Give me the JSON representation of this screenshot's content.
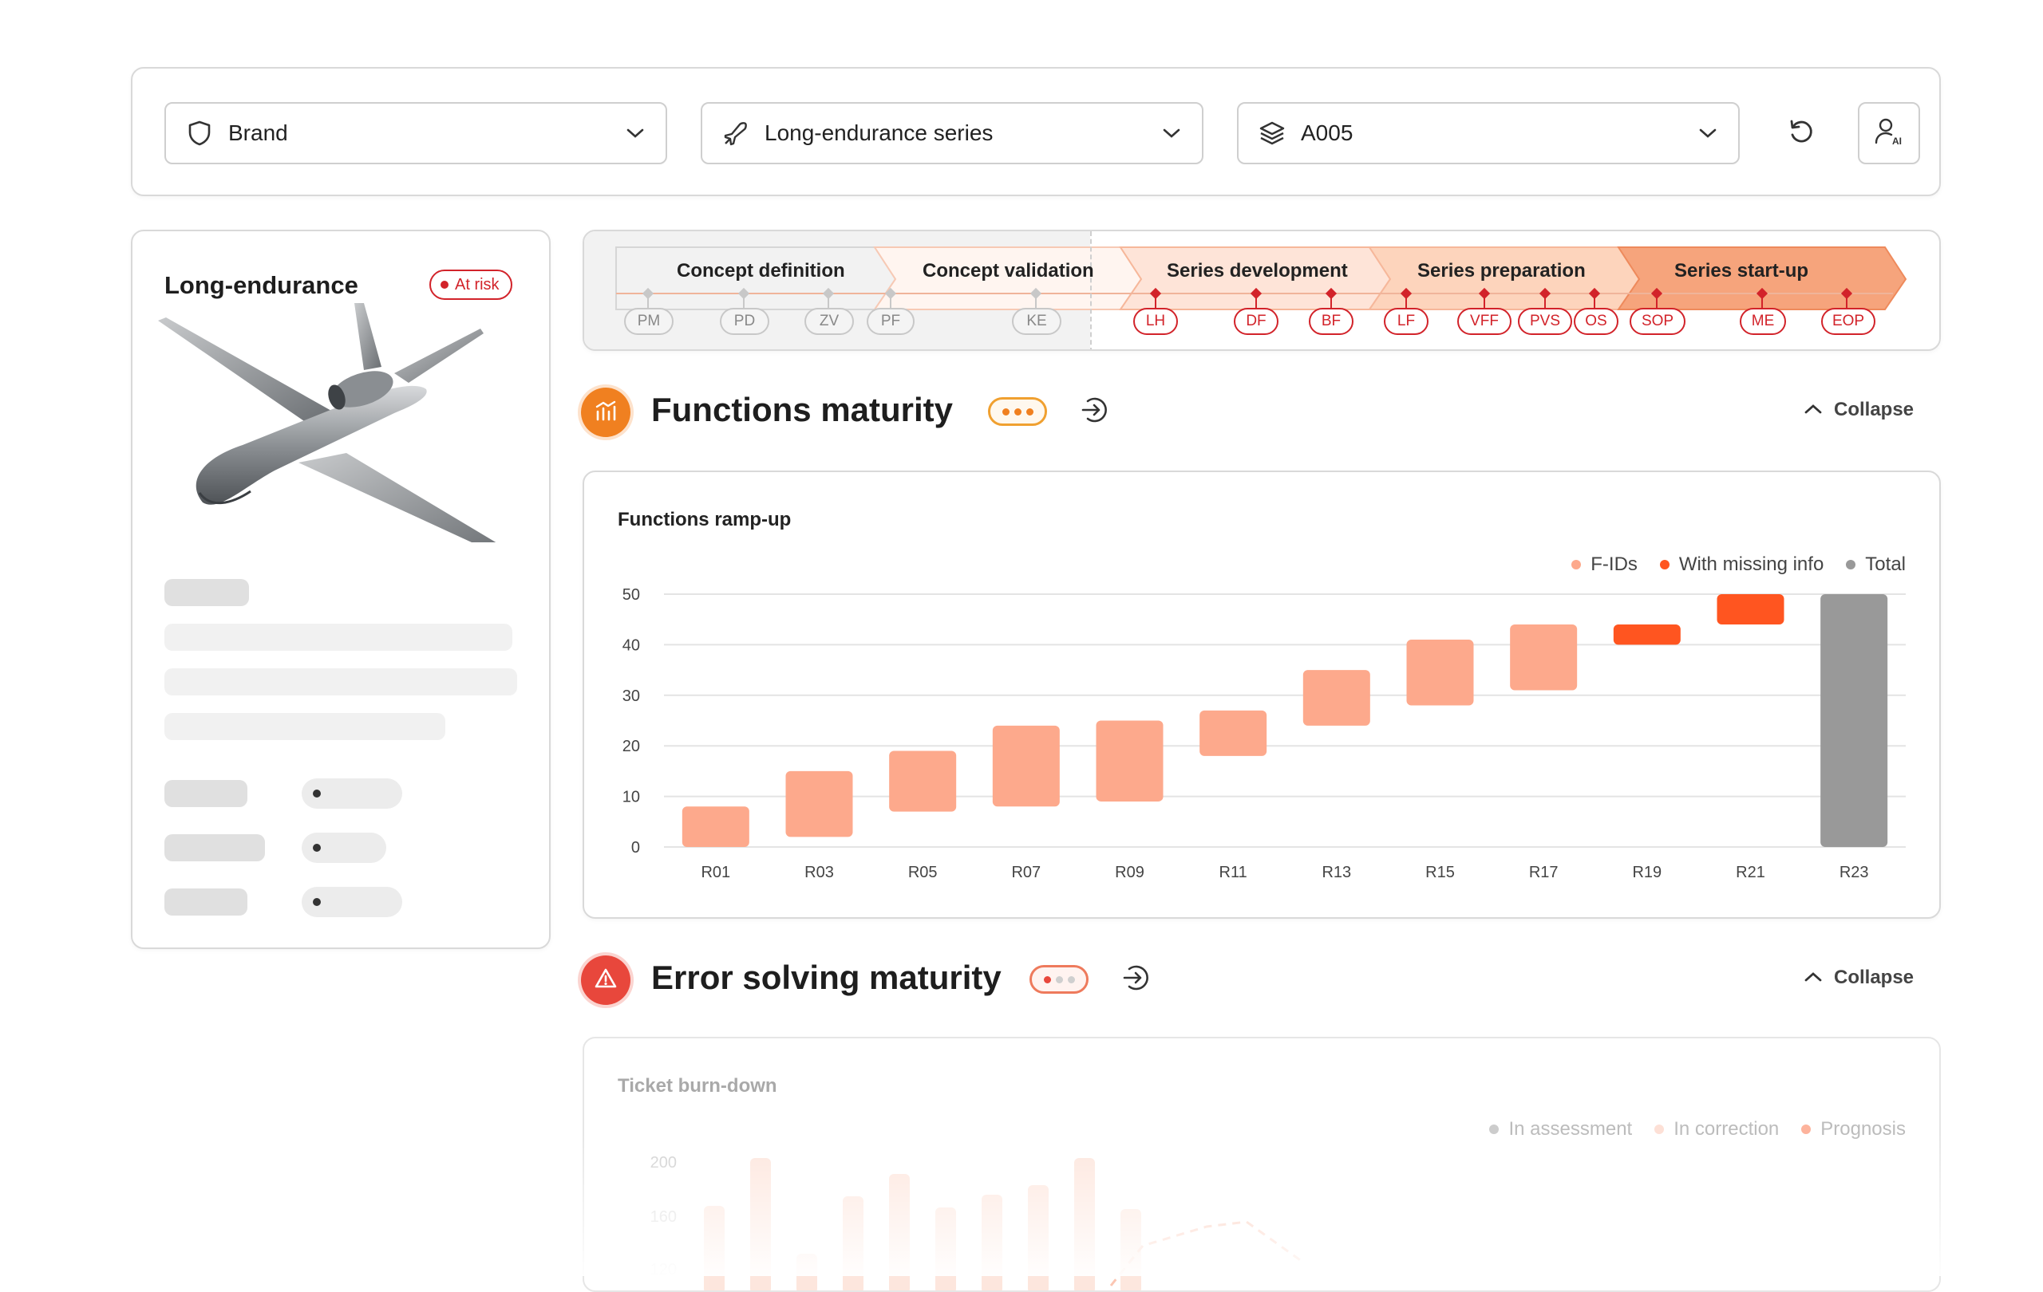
{
  "filters": {
    "brand": {
      "label": "Brand",
      "icon": "shield-icon"
    },
    "series": {
      "label": "Long-endurance series",
      "icon": "plane-icon"
    },
    "variant": {
      "label": "A005",
      "icon": "layers-icon"
    },
    "reset_icon": "refresh-icon",
    "ai_icon": "user-ai-icon"
  },
  "vehicle": {
    "title": "Long-endurance",
    "status": "At risk",
    "image": "drone-image"
  },
  "phases": {
    "items": [
      {
        "label": "Concept definition",
        "color": "#8a8a8a"
      },
      {
        "label": "Concept validation",
        "color": "#8a2a14"
      },
      {
        "label": "Series development",
        "color": "#8a2a14"
      },
      {
        "label": "Series preparation",
        "color": "#8a2a14"
      },
      {
        "label": "Series start-up",
        "color": "#8a2a14"
      }
    ],
    "milestones_past": [
      "PM",
      "PD",
      "ZV",
      "PF",
      "KE"
    ],
    "milestones_future": [
      "LH",
      "DF",
      "BF",
      "LF",
      "VFF",
      "PVS",
      "OS",
      "SOP",
      "ME",
      "EOP"
    ]
  },
  "functions_section": {
    "title": "Functions maturity",
    "collapse_label": "Collapse",
    "accent": "#f08020"
  },
  "functions_chart": {
    "title": "Functions ramp-up",
    "legend": [
      {
        "label": "F-IDs",
        "color": "#fda98c"
      },
      {
        "label": "With missing info",
        "color": "#ff5520"
      },
      {
        "label": "Total",
        "color": "#999999"
      }
    ]
  },
  "chart_data": {
    "type": "bar",
    "title": "Functions ramp-up",
    "categories": [
      "R01",
      "R03",
      "R05",
      "R07",
      "R09",
      "R11",
      "R13",
      "R15",
      "R17",
      "R19",
      "R21",
      "R23"
    ],
    "series": [
      {
        "name": "F-IDs",
        "ranges": [
          [
            0,
            8
          ],
          [
            2,
            15
          ],
          [
            7,
            19
          ],
          [
            8,
            24
          ],
          [
            9,
            25
          ],
          [
            18,
            27
          ],
          [
            24,
            35
          ],
          [
            28,
            41
          ],
          [
            31,
            44
          ],
          null,
          null,
          null
        ]
      },
      {
        "name": "With missing info",
        "ranges": [
          null,
          null,
          null,
          null,
          null,
          null,
          null,
          null,
          null,
          [
            40,
            44
          ],
          [
            44,
            50
          ],
          null
        ]
      },
      {
        "name": "Total",
        "ranges": [
          null,
          null,
          null,
          null,
          null,
          null,
          null,
          null,
          null,
          null,
          null,
          [
            0,
            50
          ]
        ]
      }
    ],
    "ylim": [
      0,
      50
    ],
    "yticks": [
      0,
      10,
      20,
      30,
      40,
      50
    ],
    "grid": true,
    "legend_position": "top-right"
  },
  "error_section": {
    "title": "Error solving maturity",
    "collapse_label": "Collapse",
    "accent": "#e8473c"
  },
  "burn_chart": {
    "title": "Ticket burn-down",
    "legend": [
      {
        "label": "In assessment",
        "color": "#cccccc"
      },
      {
        "label": "In correction",
        "color": "#fde0d6"
      },
      {
        "label": "Prognosis",
        "color": "#fdb39c"
      }
    ],
    "yticks": [
      "200",
      "160",
      "120"
    ]
  }
}
